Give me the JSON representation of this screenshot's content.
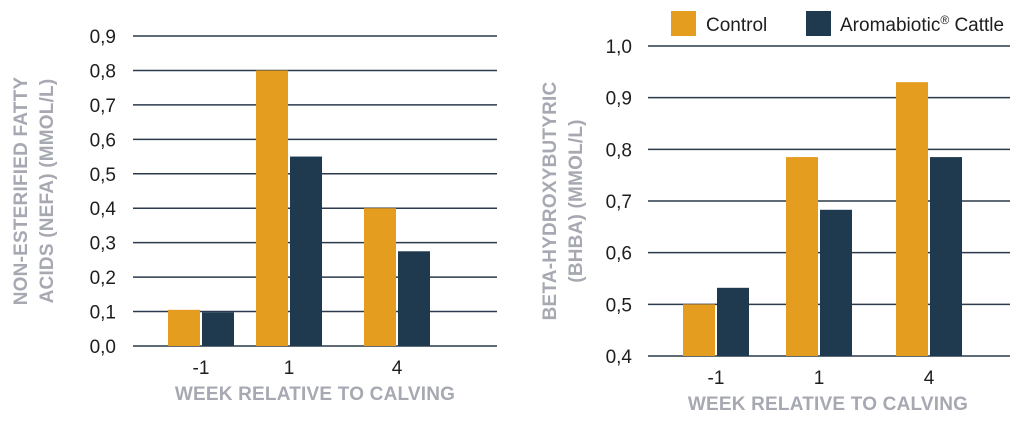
{
  "colors": {
    "control": "#E49D1F",
    "aromabiotic": "#1F3A4E",
    "grid": "#2B3A4C",
    "axis_title": "#A7A9B2",
    "tick_text": "#1E1E1E"
  },
  "legend": {
    "items": [
      {
        "label": "Control",
        "color": "#E49D1F"
      },
      {
        "label": "Aromabiotic",
        "superscript": "®",
        "suffix": " Cattle",
        "color": "#1F3A4E"
      }
    ],
    "placement": "top-right"
  },
  "chart_data": [
    {
      "type": "bar",
      "categories": [
        "-1",
        "1",
        "4"
      ],
      "series": [
        {
          "name": "Control",
          "values": [
            0.105,
            0.8,
            0.4
          ]
        },
        {
          "name": "Aromabiotic® Cattle",
          "values": [
            0.098,
            0.55,
            0.275
          ]
        }
      ],
      "xlabel": "WEEK RELATIVE TO CALVING",
      "ylabel_lines": [
        "NON-ESTERIFIED FATTY",
        "ACIDS (NEFA) (MMOL/L)"
      ],
      "ylim": [
        0.0,
        0.9
      ],
      "yticks": [
        "0,0",
        "0,1",
        "0,2",
        "0,3",
        "0,4",
        "0,5",
        "0,6",
        "0,7",
        "0,8",
        "0,9"
      ],
      "grid": true
    },
    {
      "type": "bar",
      "categories": [
        "-1",
        "1",
        "4"
      ],
      "series": [
        {
          "name": "Control",
          "values": [
            0.5,
            0.785,
            0.93
          ]
        },
        {
          "name": "Aromabiotic® Cattle",
          "values": [
            0.532,
            0.683,
            0.785
          ]
        }
      ],
      "xlabel": "WEEK RELATIVE TO CALVING",
      "ylabel_lines": [
        "BETA-HYDROXYBUTYRIC",
        "(BHBA) (MMOL/L)"
      ],
      "ylim": [
        0.4,
        1.0
      ],
      "yticks": [
        "0,4",
        "0,5",
        "0,6",
        "0,7",
        "0,8",
        "0,9",
        "1,0"
      ],
      "grid": true
    }
  ]
}
